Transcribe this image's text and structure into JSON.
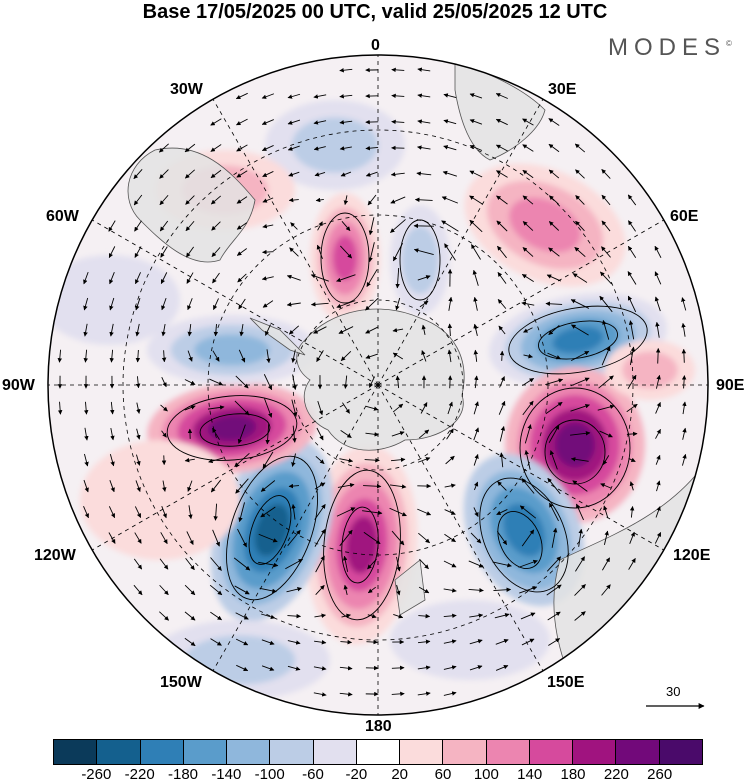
{
  "header": {
    "title": "Base 17/05/2025 00 UTC, valid 25/05/2025 12 UTC",
    "brand": "MODES"
  },
  "map": {
    "projection": "south-polar-stereographic",
    "labels": {
      "top": "0",
      "bottom": "180",
      "left": "90W",
      "right": "90E",
      "w30": "30W",
      "e30": "30E",
      "w60": "60W",
      "e60": "60E",
      "w120": "120W",
      "e120": "120E",
      "w150": "150W",
      "e150": "150E"
    },
    "vector_scale_label": "30"
  },
  "colorbar": {
    "ticks": [
      "-260",
      "-220",
      "-180",
      "-140",
      "-100",
      "-60",
      "-20",
      "20",
      "60",
      "100",
      "140",
      "180",
      "220",
      "260"
    ],
    "colors": [
      "#0b3a5a",
      "#14608e",
      "#2f7fb6",
      "#5a9ccb",
      "#8fb7dc",
      "#bccde6",
      "#e2e0ef",
      "#ffffff",
      "#fbdcdc",
      "#f5b4c2",
      "#ec85b0",
      "#d64a9d",
      "#a0137f",
      "#72097a",
      "#4a0a6a"
    ]
  }
}
